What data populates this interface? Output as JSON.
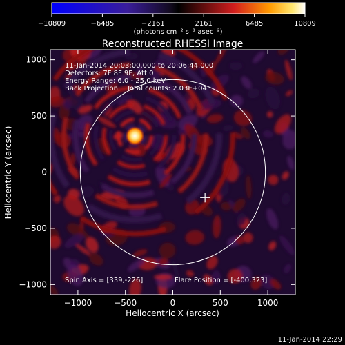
{
  "chart_data": {
    "type": "heatmap",
    "title": "Reconstructed RHESSI Image",
    "xlabel": "Heliocentric X (arcsec)",
    "ylabel": "Heliocentric Y (arcsec)",
    "xlim": [
      -1290,
      1290
    ],
    "ylim": [
      -1090,
      1090
    ],
    "xticks": [
      -1000,
      -500,
      0,
      500,
      1000
    ],
    "xtick_labels": [
      "−1000",
      "−500",
      "0",
      "500",
      "1000"
    ],
    "yticks": [
      -1000,
      -500,
      0,
      500,
      1000
    ],
    "ytick_labels": [
      "−1000",
      "−500",
      "0",
      "500",
      "1000"
    ],
    "colorbar": {
      "range": [
        -10809,
        10809
      ],
      "tick_labels": [
        "−10809",
        "−6485",
        "−2161",
        "2161",
        "6485",
        "10809"
      ],
      "unit_label": "(photons cm⁻² s⁻¹ asec⁻²)"
    },
    "annotations": [
      "11-Jan-2014 20:03:00.000 to 20:06:44.000",
      "Detectors: 7F 8F 9F, Att 0",
      "Energy Range: 6.0 - 25.0 keV",
      "Back Projection    Total counts: 2.03E+04"
    ],
    "spin_axis": "Spin Axis = [339,-226]",
    "flare_position_label": "Flare Position = [-400,323]",
    "source": {
      "x": -400,
      "y": 323
    },
    "spin_axis_point": {
      "x": 339,
      "y": -226
    },
    "solar_disk": {
      "center": [
        0,
        0
      ],
      "radius": 975
    },
    "footer": "11-Jan-2014 22:29"
  }
}
